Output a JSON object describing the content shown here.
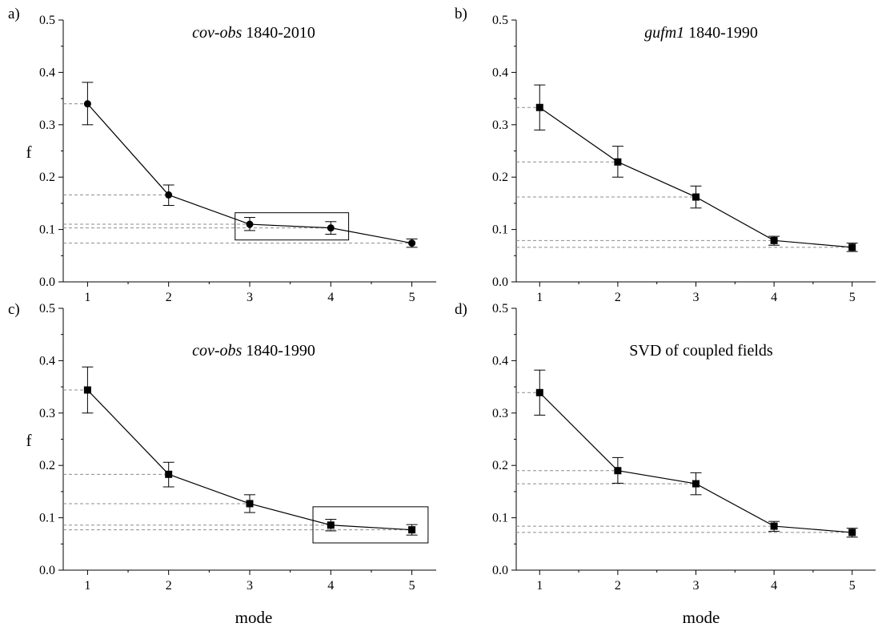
{
  "axes": {
    "xlabel": "mode",
    "ylabel": "f",
    "x_ticks": [
      1,
      2,
      3,
      4,
      5
    ],
    "y_ticks": [
      "0.0",
      "0.1",
      "0.2",
      "0.3",
      "0.4",
      "0.5"
    ]
  },
  "chart_data": [
    {
      "type": "line",
      "panel": "a)",
      "title_italic": "cov-obs",
      "title_rest": " 1840-2010",
      "x": [
        1,
        2,
        3,
        4,
        5
      ],
      "values": [
        0.34,
        0.166,
        0.11,
        0.103,
        0.074
      ],
      "err_low": [
        0.3,
        0.146,
        0.098,
        0.091,
        0.066
      ],
      "err_high": [
        0.381,
        0.185,
        0.123,
        0.115,
        0.082
      ],
      "marker": "circle",
      "ylim": [
        0,
        0.5
      ],
      "xlim": [
        0.7,
        5.3
      ],
      "highlight_box": {
        "x": [
          2.82,
          4.22
        ],
        "y": [
          0.08,
          0.132
        ]
      }
    },
    {
      "type": "line",
      "panel": "b)",
      "title_italic": "gufm1",
      "title_rest": " 1840-1990",
      "x": [
        1,
        2,
        3,
        4,
        5
      ],
      "values": [
        0.333,
        0.229,
        0.162,
        0.079,
        0.066
      ],
      "err_low": [
        0.29,
        0.2,
        0.141,
        0.07,
        0.058
      ],
      "err_high": [
        0.376,
        0.259,
        0.183,
        0.087,
        0.074
      ],
      "marker": "square",
      "ylim": [
        0,
        0.5
      ],
      "xlim": [
        0.7,
        5.3
      ],
      "highlight_box": null
    },
    {
      "type": "line",
      "panel": "c)",
      "title_italic": "cov-obs",
      "title_rest": " 1840-1990",
      "x": [
        1,
        2,
        3,
        4,
        5
      ],
      "values": [
        0.344,
        0.183,
        0.127,
        0.086,
        0.077
      ],
      "err_low": [
        0.3,
        0.159,
        0.11,
        0.075,
        0.067
      ],
      "err_high": [
        0.388,
        0.206,
        0.144,
        0.097,
        0.087
      ],
      "marker": "square",
      "ylim": [
        0,
        0.5
      ],
      "xlim": [
        0.7,
        5.3
      ],
      "highlight_box": {
        "x": [
          3.78,
          5.2
        ],
        "y": [
          0.052,
          0.121
        ]
      }
    },
    {
      "type": "line",
      "panel": "d)",
      "title_italic": "",
      "title_rest": "SVD of coupled fields",
      "x": [
        1,
        2,
        3,
        4,
        5
      ],
      "values": [
        0.339,
        0.19,
        0.165,
        0.084,
        0.072
      ],
      "err_low": [
        0.296,
        0.166,
        0.144,
        0.074,
        0.063
      ],
      "err_high": [
        0.382,
        0.215,
        0.186,
        0.093,
        0.08
      ],
      "marker": "square",
      "ylim": [
        0,
        0.5
      ],
      "xlim": [
        0.7,
        5.3
      ],
      "highlight_box": null
    }
  ]
}
